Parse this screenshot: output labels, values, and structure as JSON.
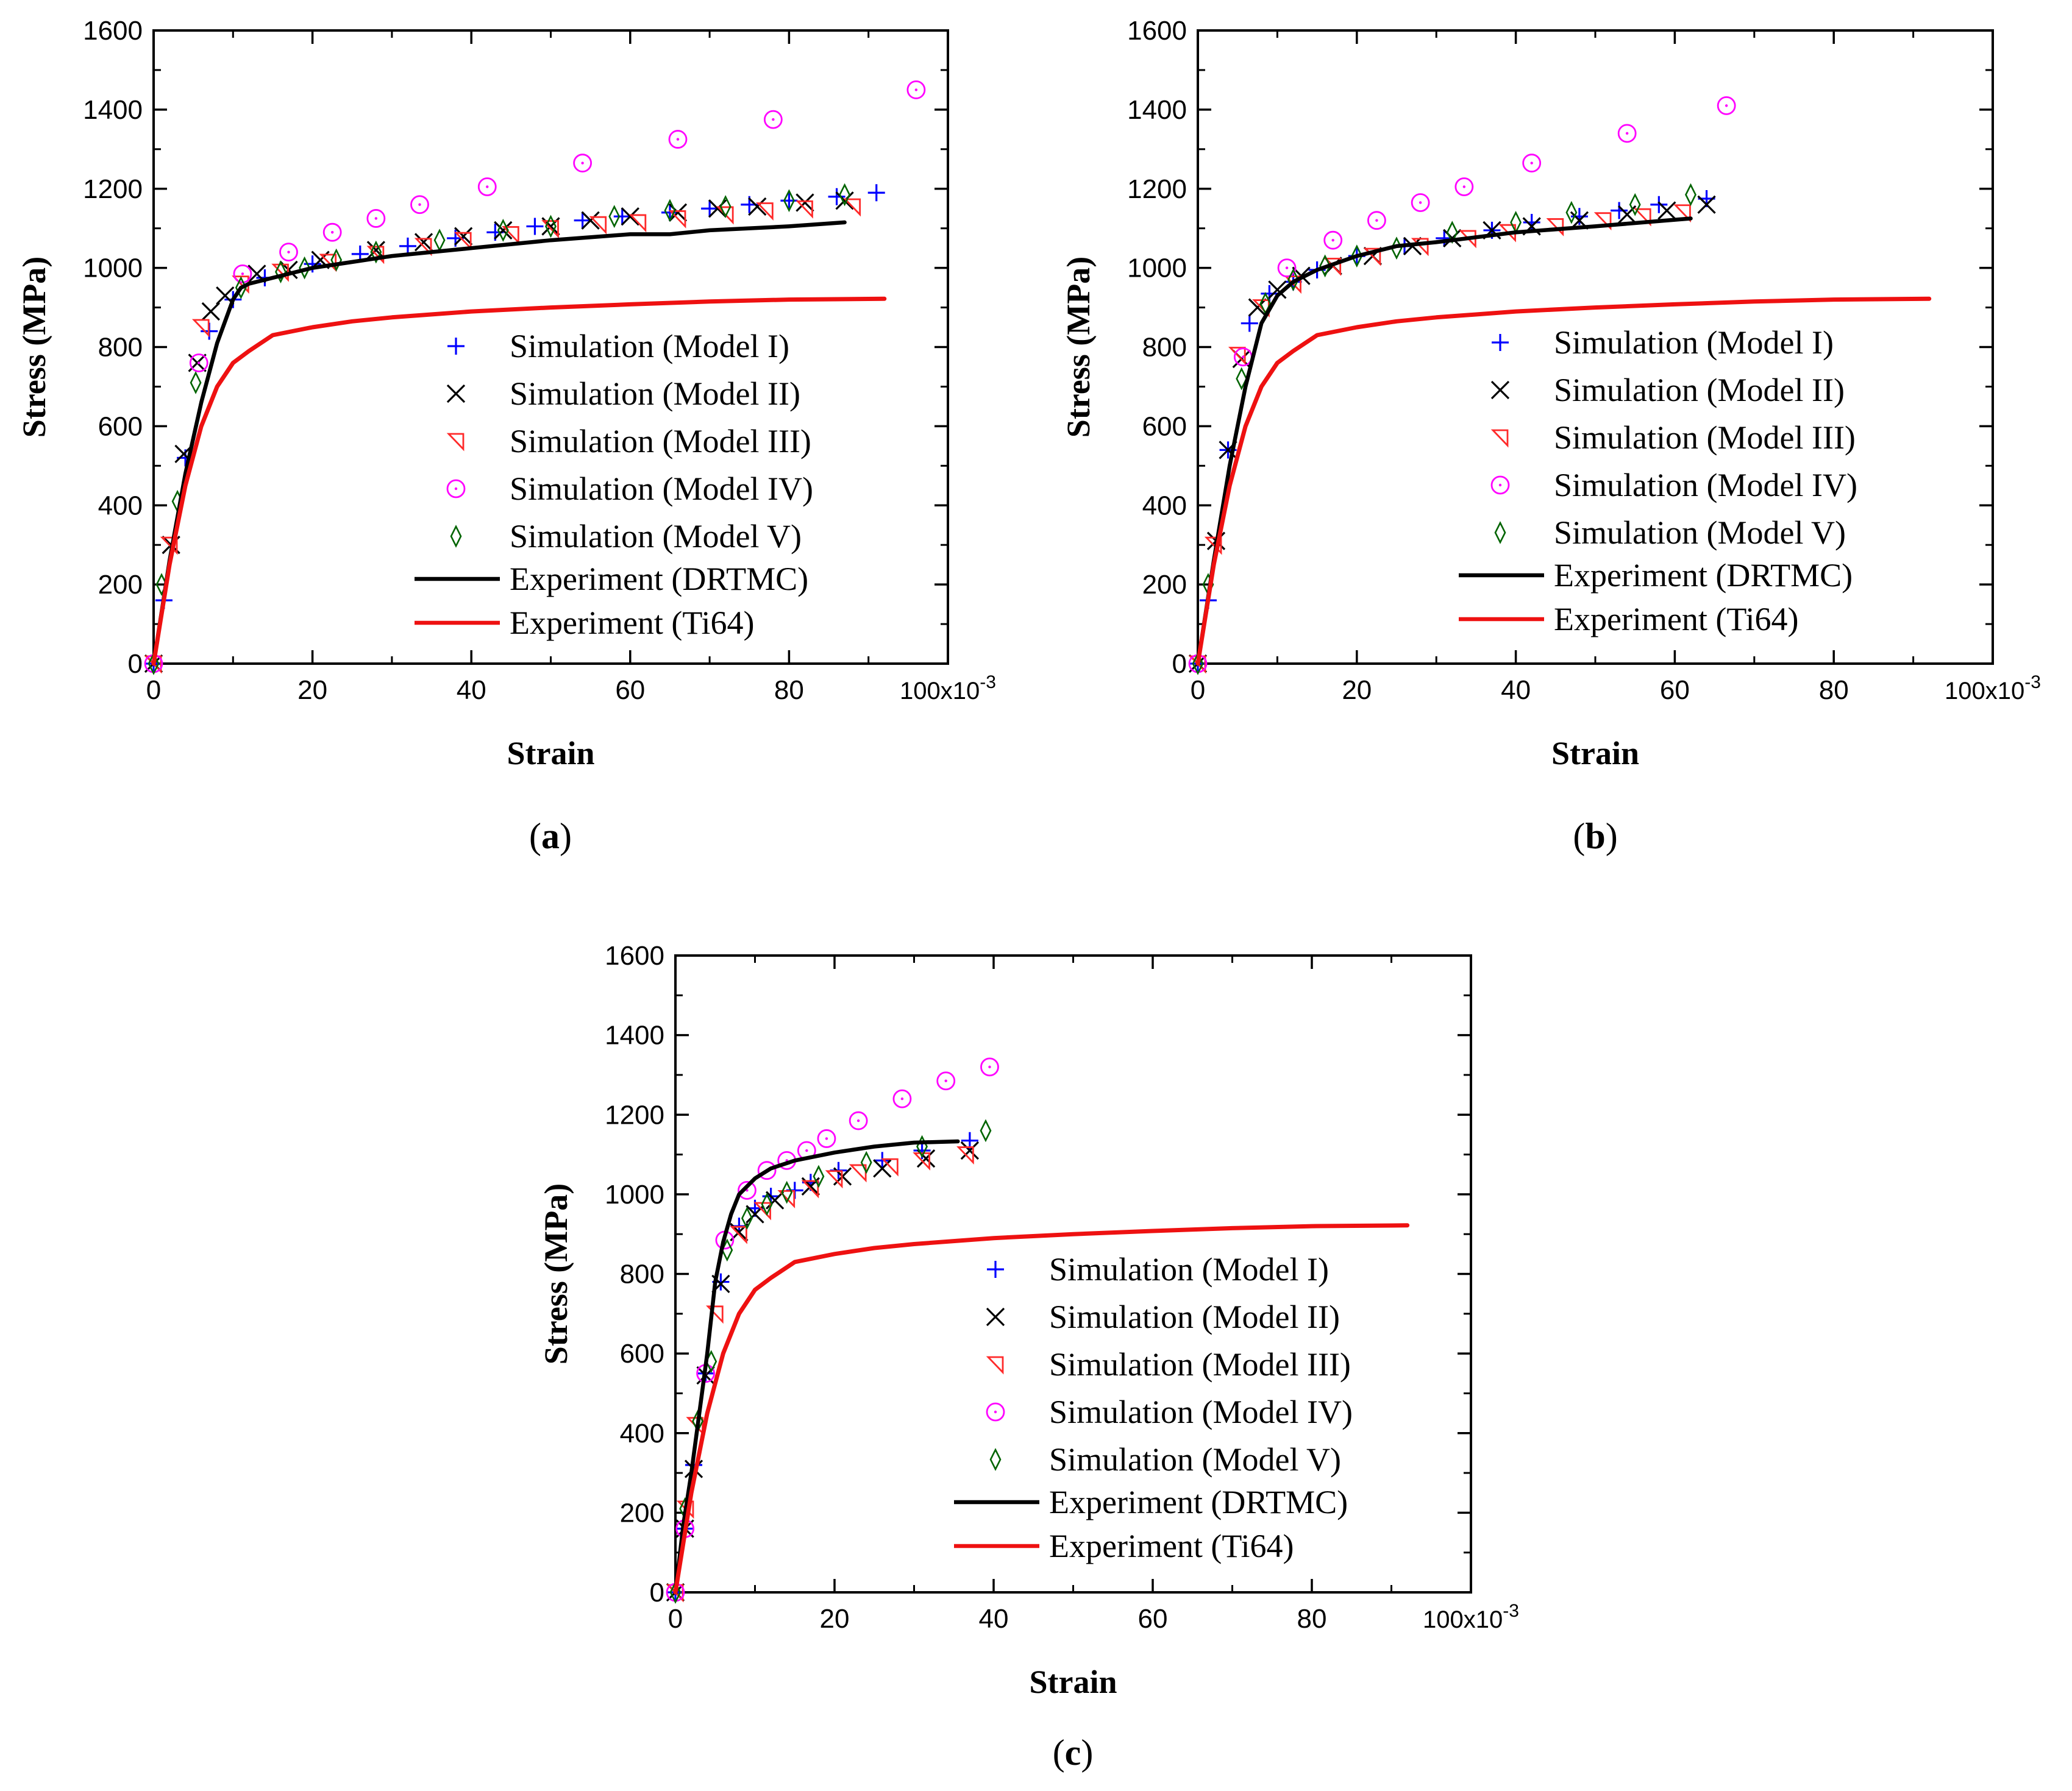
{
  "figure": {
    "legend_labels": [
      "Simulation (Model I)",
      "Simulation (Model II)",
      "Simulation (Model III)",
      "Simulation (Model IV)",
      "Simulation (Model V)",
      "Experiment (DRTMC)",
      "Experiment (Ti64)"
    ]
  },
  "colors": {
    "model_1": "#0000ff",
    "model_2": "#000000",
    "model_3": "#ff2a2a",
    "model_4": "#ff00ff",
    "model_5": "#006400",
    "drtmc": "#000000",
    "ti64": "#ee1111"
  },
  "chart_data": [
    {
      "type": "scatter",
      "panel_label": "(a)",
      "xlabel": "Strain",
      "ylabel": "Stress (MPa)",
      "x_unit_label": "100x10",
      "x_unit_exp": "-3",
      "xlim": [
        0,
        100
      ],
      "ylim": [
        0,
        1600
      ],
      "xticks": [
        "0",
        "20",
        "40",
        "60",
        "80"
      ],
      "yticks": [
        "0",
        "200",
        "400",
        "600",
        "800",
        "1000",
        "1200",
        "1400",
        "1600"
      ],
      "legend_position": "lower-right",
      "series": [
        {
          "name": "Simulation (Model I)",
          "marker": "plus",
          "x": [
            0,
            1.3,
            4,
            7,
            10,
            14,
            20,
            26,
            32,
            38,
            43,
            48,
            54,
            59,
            65,
            70,
            75,
            80,
            86,
            91
          ],
          "y": [
            0,
            160,
            520,
            840,
            920,
            975,
            1010,
            1035,
            1055,
            1075,
            1090,
            1105,
            1120,
            1130,
            1140,
            1150,
            1160,
            1170,
            1180,
            1190
          ]
        },
        {
          "name": "Simulation (Model II)",
          "marker": "x",
          "x": [
            0,
            2.2,
            3.8,
            5.5,
            7.2,
            9,
            13,
            17,
            21,
            28,
            34,
            39,
            44,
            50,
            55,
            60,
            66,
            71,
            76,
            82,
            87
          ],
          "y": [
            0,
            300,
            530,
            760,
            890,
            930,
            985,
            995,
            1020,
            1045,
            1065,
            1080,
            1095,
            1105,
            1120,
            1130,
            1140,
            1150,
            1155,
            1165,
            1170
          ]
        },
        {
          "name": "Simulation (Model III)",
          "marker": "triangle",
          "x": [
            0,
            2,
            6,
            11,
            16,
            22,
            28,
            34,
            39,
            45,
            50,
            56,
            61,
            66,
            72,
            77,
            82,
            88
          ],
          "y": [
            0,
            300,
            850,
            960,
            990,
            1015,
            1035,
            1055,
            1070,
            1085,
            1100,
            1110,
            1115,
            1125,
            1135,
            1145,
            1150,
            1155
          ]
        },
        {
          "name": "Simulation (Model IV)",
          "marker": "circle",
          "x": [
            0,
            5.7,
            11.2,
            17,
            22.5,
            28,
            33.5,
            42,
            54,
            66,
            78,
            96
          ],
          "y": [
            0,
            760,
            985,
            1040,
            1090,
            1125,
            1160,
            1205,
            1265,
            1325,
            1375,
            1450
          ]
        },
        {
          "name": "Simulation (Model V)",
          "marker": "diamond",
          "x": [
            0,
            1,
            3,
            5.3,
            11,
            16,
            19,
            23,
            28,
            36,
            44,
            50,
            58,
            65,
            72,
            80,
            87
          ],
          "y": [
            0,
            200,
            410,
            710,
            950,
            990,
            1000,
            1020,
            1040,
            1070,
            1095,
            1105,
            1130,
            1145,
            1155,
            1170,
            1185
          ]
        },
        {
          "name": "Experiment (DRTMC)",
          "marker": "line",
          "x": [
            0,
            2,
            4,
            6,
            8,
            10,
            11,
            12,
            14,
            17,
            20,
            25,
            30,
            35,
            40,
            50,
            60,
            65,
            70,
            80,
            87
          ],
          "y": [
            0,
            260,
            480,
            660,
            810,
            920,
            950,
            960,
            970,
            985,
            1000,
            1015,
            1030,
            1040,
            1050,
            1070,
            1085,
            1085,
            1095,
            1105,
            1115
          ]
        },
        {
          "name": "Experiment (Ti64)",
          "marker": "line",
          "x": [
            0,
            2,
            4,
            6,
            8,
            10,
            12,
            15,
            20,
            25,
            30,
            40,
            50,
            60,
            70,
            80,
            92
          ],
          "y": [
            0,
            250,
            450,
            600,
            700,
            760,
            790,
            830,
            850,
            865,
            875,
            890,
            900,
            908,
            915,
            920,
            922
          ]
        }
      ]
    },
    {
      "type": "scatter",
      "panel_label": "(b)",
      "xlabel": "Strain",
      "ylabel": "Stress (MPa)",
      "x_unit_label": "100x10",
      "x_unit_exp": "-3",
      "xlim": [
        0,
        100
      ],
      "ylim": [
        0,
        1600
      ],
      "xticks": [
        "0",
        "20",
        "40",
        "60",
        "80"
      ],
      "yticks": [
        "0",
        "200",
        "400",
        "600",
        "800",
        "1000",
        "1200",
        "1400",
        "1600"
      ],
      "legend_position": "lower-right",
      "series": [
        {
          "name": "Simulation (Model I)",
          "marker": "plus",
          "x": [
            0,
            1.3,
            3.8,
            6.5,
            9,
            12,
            15,
            20,
            26,
            31,
            37,
            42,
            48,
            53,
            58,
            64
          ],
          "y": [
            0,
            160,
            540,
            860,
            935,
            965,
            995,
            1030,
            1055,
            1075,
            1095,
            1115,
            1130,
            1145,
            1160,
            1175
          ]
        },
        {
          "name": "Simulation (Model II)",
          "marker": "x",
          "x": [
            0,
            2.3,
            3.8,
            5.5,
            7.5,
            10,
            13,
            17,
            22,
            27,
            32,
            37,
            42,
            48,
            54,
            59,
            64
          ],
          "y": [
            0,
            310,
            540,
            770,
            900,
            945,
            980,
            1005,
            1030,
            1055,
            1075,
            1095,
            1105,
            1120,
            1135,
            1145,
            1160
          ]
        },
        {
          "name": "Simulation (Model III)",
          "marker": "triangle",
          "x": [
            0,
            2,
            5,
            8,
            12,
            17,
            22,
            28,
            34,
            39,
            45,
            51,
            56,
            61
          ],
          "y": [
            0,
            300,
            780,
            900,
            960,
            1005,
            1030,
            1055,
            1075,
            1090,
            1105,
            1120,
            1130,
            1140
          ]
        },
        {
          "name": "Simulation (Model IV)",
          "marker": "circle",
          "x": [
            0,
            5.7,
            11.2,
            17,
            22.5,
            28,
            33.5,
            42,
            54,
            66.5
          ],
          "y": [
            0,
            775,
            1000,
            1070,
            1120,
            1165,
            1205,
            1265,
            1340,
            1410
          ]
        },
        {
          "name": "Simulation (Model V)",
          "marker": "diamond",
          "x": [
            0,
            1.3,
            5.5,
            8.5,
            12,
            16,
            20,
            25,
            32,
            40,
            47,
            55,
            62
          ],
          "y": [
            0,
            200,
            720,
            910,
            970,
            1005,
            1030,
            1050,
            1090,
            1115,
            1140,
            1160,
            1185
          ]
        },
        {
          "name": "Experiment (DRTMC)",
          "marker": "line",
          "x": [
            0,
            2,
            4,
            6,
            8,
            10,
            12,
            15,
            20,
            25,
            30,
            40,
            50,
            62
          ],
          "y": [
            0,
            260,
            500,
            700,
            860,
            930,
            965,
            995,
            1030,
            1055,
            1065,
            1090,
            1105,
            1125
          ]
        },
        {
          "name": "Experiment (Ti64)",
          "marker": "line",
          "x": [
            0,
            2,
            4,
            6,
            8,
            10,
            12,
            15,
            20,
            25,
            30,
            40,
            50,
            60,
            70,
            80,
            92
          ],
          "y": [
            0,
            250,
            450,
            600,
            700,
            760,
            790,
            830,
            850,
            865,
            875,
            890,
            900,
            908,
            915,
            920,
            922
          ]
        }
      ]
    },
    {
      "type": "scatter",
      "panel_label": "(c)",
      "xlabel": "Strain",
      "ylabel": "Stress (MPa)",
      "x_unit_label": "100x10",
      "x_unit_exp": "-3",
      "xlim": [
        0,
        100
      ],
      "ylim": [
        0,
        1600
      ],
      "xticks": [
        "0",
        "20",
        "40",
        "60",
        "80"
      ],
      "yticks": [
        "0",
        "200",
        "400",
        "600",
        "800",
        "1000",
        "1200",
        "1400",
        "1600"
      ],
      "legend_position": "lower-right",
      "series": [
        {
          "name": "Simulation (Model I)",
          "marker": "plus",
          "x": [
            0,
            1.2,
            2.3,
            3.8,
            5.7,
            8,
            10,
            12,
            15,
            17,
            20.5,
            26,
            31,
            37
          ],
          "y": [
            0,
            160,
            320,
            550,
            780,
            920,
            965,
            995,
            1010,
            1030,
            1060,
            1085,
            1110,
            1135
          ]
        },
        {
          "name": "Simulation (Model II)",
          "marker": "x",
          "x": [
            0,
            1.2,
            2.3,
            3.8,
            5.7,
            8,
            10,
            12.5,
            17,
            21,
            26,
            31.5,
            37
          ],
          "y": [
            0,
            160,
            310,
            545,
            775,
            905,
            950,
            985,
            1020,
            1045,
            1065,
            1090,
            1110
          ]
        },
        {
          "name": "Simulation (Model III)",
          "marker": "triangle",
          "x": [
            0,
            1.3,
            2.5,
            5,
            8,
            11,
            14,
            17,
            20,
            23,
            27,
            31,
            36.5
          ],
          "y": [
            0,
            210,
            420,
            700,
            900,
            960,
            990,
            1015,
            1040,
            1055,
            1070,
            1085,
            1100
          ]
        },
        {
          "name": "Simulation (Model IV)",
          "marker": "circle",
          "x": [
            0,
            1.2,
            3.8,
            6.2,
            9,
            11.5,
            14,
            16.5,
            19,
            23,
            28.5,
            34,
            39.5
          ],
          "y": [
            0,
            160,
            550,
            885,
            1010,
            1060,
            1085,
            1110,
            1140,
            1185,
            1240,
            1285,
            1320
          ]
        },
        {
          "name": "Simulation (Model V)",
          "marker": "diamond",
          "x": [
            0,
            1.2,
            2.8,
            4.5,
            6.5,
            9,
            11.5,
            14,
            18,
            24,
            31,
            39
          ],
          "y": [
            0,
            210,
            430,
            580,
            860,
            940,
            975,
            1005,
            1045,
            1080,
            1120,
            1160
          ]
        },
        {
          "name": "Experiment (DRTMC)",
          "marker": "line",
          "x": [
            0,
            1,
            2,
            3,
            4,
            5,
            6,
            7,
            8,
            10,
            12,
            15,
            20,
            25,
            30,
            35.5
          ],
          "y": [
            0,
            170,
            300,
            450,
            600,
            780,
            880,
            950,
            1000,
            1040,
            1065,
            1085,
            1105,
            1120,
            1130,
            1133
          ]
        },
        {
          "name": "Experiment (Ti64)",
          "marker": "line",
          "x": [
            0,
            2,
            4,
            6,
            8,
            10,
            12,
            15,
            20,
            25,
            30,
            40,
            50,
            60,
            70,
            80,
            92
          ],
          "y": [
            0,
            250,
            450,
            600,
            700,
            760,
            790,
            830,
            850,
            865,
            875,
            890,
            900,
            908,
            915,
            920,
            922
          ]
        }
      ]
    }
  ]
}
